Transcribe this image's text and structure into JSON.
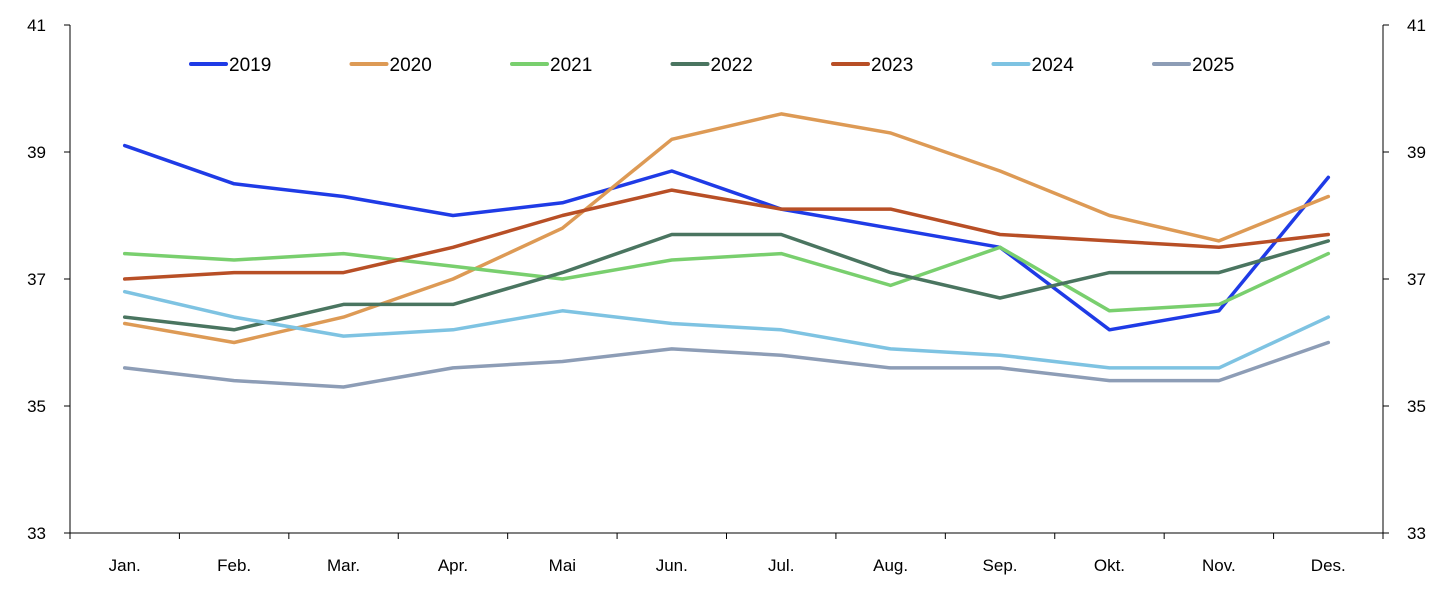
{
  "chart_data": {
    "type": "line",
    "title": "",
    "xlabel": "",
    "ylabel": "",
    "categories": [
      "Jan.",
      "Feb.",
      "Mar.",
      "Apr.",
      "Mai",
      "Jun.",
      "Jul.",
      "Aug.",
      "Sep.",
      "Okt.",
      "Nov.",
      "Des."
    ],
    "ylim": [
      33,
      41
    ],
    "yticks": [
      "33",
      "35",
      "37",
      "39",
      "41"
    ],
    "secondary_yticks": [
      "33",
      "35",
      "37",
      "39",
      "41"
    ],
    "grid": false,
    "legend_position": "top",
    "series": [
      {
        "name": "2019",
        "color": "#1f3be6",
        "values": [
          39.1,
          38.5,
          38.3,
          38.0,
          38.2,
          38.7,
          38.1,
          37.8,
          37.5,
          36.2,
          36.5,
          38.6
        ]
      },
      {
        "name": "2020",
        "color": "#dd9a55",
        "values": [
          36.3,
          36.0,
          36.4,
          37.0,
          37.8,
          39.2,
          39.6,
          39.3,
          38.7,
          38.0,
          37.6,
          38.3
        ]
      },
      {
        "name": "2021",
        "color": "#79cf6e",
        "values": [
          37.4,
          37.3,
          37.4,
          37.2,
          37.0,
          37.3,
          37.4,
          36.9,
          37.5,
          36.5,
          36.6,
          37.4
        ]
      },
      {
        "name": "2022",
        "color": "#4a7560",
        "values": [
          36.4,
          36.2,
          36.6,
          36.6,
          37.1,
          37.7,
          37.7,
          37.1,
          36.7,
          37.1,
          37.1,
          37.6
        ]
      },
      {
        "name": "2023",
        "color": "#b84f26",
        "values": [
          37.0,
          37.1,
          37.1,
          37.5,
          38.0,
          38.4,
          38.1,
          38.1,
          37.7,
          37.6,
          37.5,
          37.7
        ]
      },
      {
        "name": "2024",
        "color": "#7ec3e2",
        "values": [
          36.8,
          36.4,
          36.1,
          36.2,
          36.5,
          36.3,
          36.2,
          35.9,
          35.8,
          35.6,
          35.6,
          36.4
        ]
      },
      {
        "name": "2025",
        "color": "#8d9db6",
        "values": [
          35.6,
          35.4,
          35.3,
          35.6,
          35.7,
          35.9,
          35.8,
          35.6,
          35.6,
          35.4,
          35.4,
          36.0
        ]
      }
    ]
  }
}
